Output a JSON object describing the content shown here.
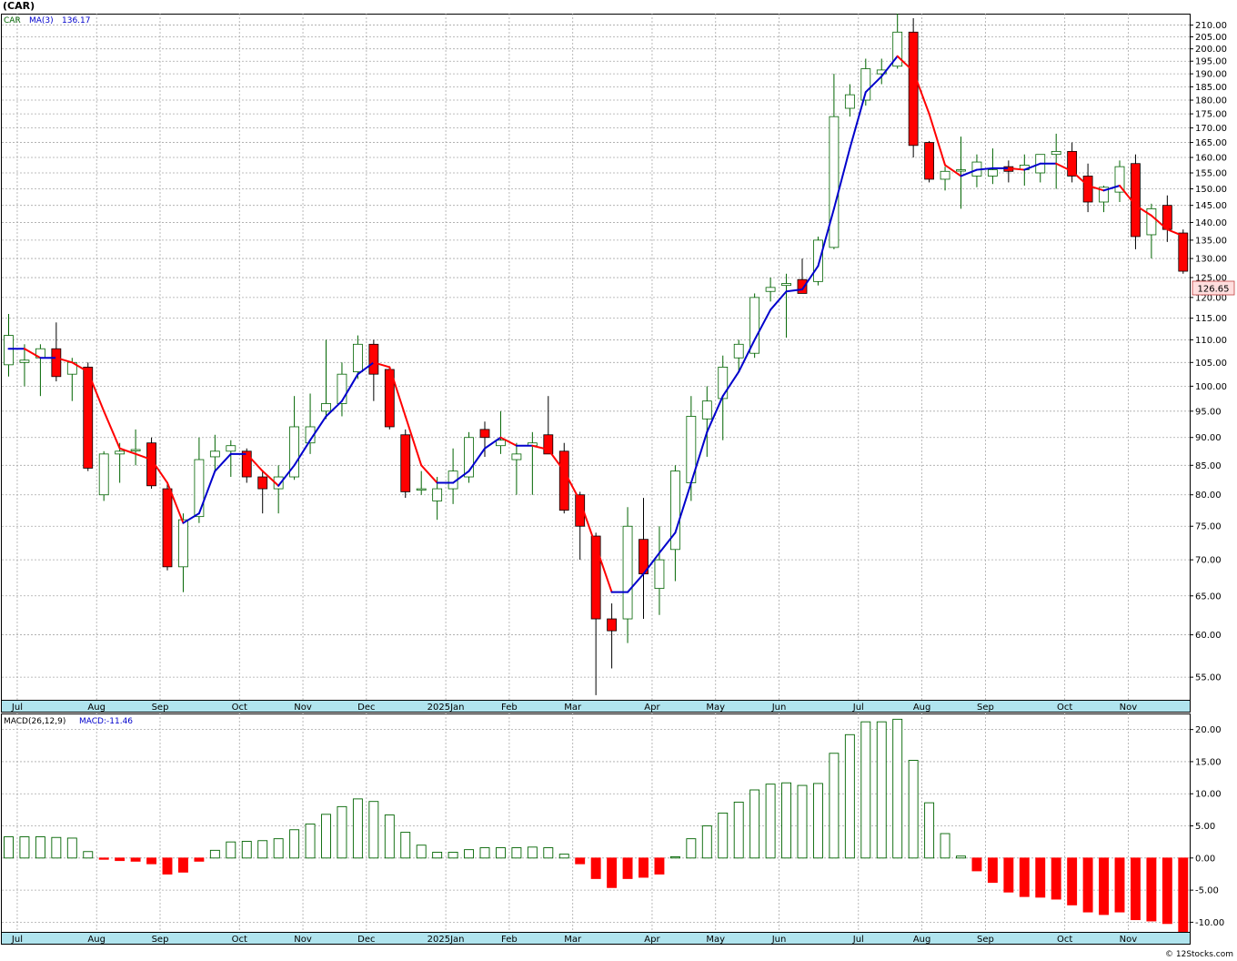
{
  "header": {
    "title": "(CAR)"
  },
  "legend": {
    "price_symbol": "CAR",
    "ma_label": "MA(3)",
    "ma_value": "136.17",
    "macd_label": "MACD(26,12,9)",
    "macd_value_label": "MACD:-11.46"
  },
  "last_price_label": "126.65",
  "footer": {
    "credit": "© 12Stocks.com"
  },
  "colors": {
    "up_candle": "#006400",
    "down_candle": "#ff0000",
    "ma_up": "#0000cc",
    "ma_down": "#ff0000",
    "axis_strip": "#b0e4ee",
    "last_price_box": "#ffdede"
  },
  "chart_data": [
    {
      "type": "candlestick",
      "x_unit": "week",
      "x_axis_labels": [
        "Jul",
        "Aug",
        "Sep",
        "Oct",
        "Nov",
        "Dec",
        "2025Jan",
        "Feb",
        "Mar",
        "Apr",
        "May",
        "Jun",
        "Jul",
        "Aug",
        "Sep",
        "Oct",
        "Nov"
      ],
      "x_label_week_index": [
        1,
        6,
        10,
        15,
        19,
        23,
        28,
        32,
        36,
        41,
        45,
        49,
        54,
        58,
        62,
        67,
        71
      ],
      "y_scale": "log",
      "y_ticks": [
        55,
        60,
        65,
        70,
        75,
        80,
        85,
        90,
        95,
        100,
        105,
        110,
        115,
        120,
        125,
        130,
        135,
        140,
        145,
        150,
        155,
        160,
        165,
        170,
        175,
        180,
        185,
        190,
        195,
        200,
        205,
        210
      ],
      "y_tick_labels": [
        "55.00",
        "60.00",
        "65.00",
        "70.00",
        "75.00",
        "80.00",
        "85.00",
        "90.00",
        "95.00",
        "100.00",
        "105.00",
        "110.00",
        "115.00",
        "120.00",
        "125.00",
        "130.00",
        "135.00",
        "140.00",
        "145.00",
        "150.00",
        "155.00",
        "160.00",
        "165.00",
        "170.00",
        "175.00",
        "180.00",
        "185.00",
        "190.00",
        "195.00",
        "200.00",
        "205.00",
        "210.00"
      ],
      "ylim": [
        52.5,
        215
      ],
      "ohlc": [
        [
          104.5,
          116,
          102,
          111
        ],
        [
          105,
          109,
          100,
          105.5
        ],
        [
          106,
          109,
          98,
          108
        ],
        [
          108,
          114,
          101,
          102
        ],
        [
          102.5,
          106,
          97,
          105
        ],
        [
          104,
          105,
          84,
          84.5
        ],
        [
          80,
          87.5,
          79,
          87
        ],
        [
          87,
          89,
          82,
          87.5
        ],
        [
          87.8,
          91.5,
          85,
          87.8
        ],
        [
          89,
          90,
          81,
          81.5
        ],
        [
          81,
          82,
          68.5,
          69
        ],
        [
          69,
          77,
          65.5,
          76
        ],
        [
          76.5,
          90,
          75.5,
          86
        ],
        [
          86.5,
          90.5,
          84,
          87.5
        ],
        [
          87.5,
          89.5,
          83,
          88.5
        ],
        [
          87.5,
          88,
          82,
          83
        ],
        [
          83,
          84,
          77,
          81
        ],
        [
          81,
          85,
          77,
          83
        ],
        [
          83,
          98,
          82.5,
          92
        ],
        [
          89,
          98.5,
          87,
          92
        ],
        [
          95,
          110,
          93.5,
          96.5
        ],
        [
          96.5,
          105,
          94,
          102.5
        ],
        [
          103,
          111,
          101.5,
          109
        ],
        [
          109,
          110,
          97,
          102.5
        ],
        [
          103.5,
          104,
          91.5,
          92
        ],
        [
          90.5,
          91.5,
          79.5,
          80.5
        ],
        [
          81,
          84,
          80,
          81
        ],
        [
          79,
          83,
          76,
          81
        ],
        [
          81,
          88,
          78.5,
          84
        ],
        [
          83,
          91,
          82,
          90
        ],
        [
          91.5,
          93,
          86.5,
          90
        ],
        [
          88.5,
          95,
          87,
          89.5
        ],
        [
          86,
          89,
          80,
          87
        ],
        [
          88.5,
          91,
          80,
          89
        ],
        [
          90.5,
          98,
          87.5,
          87
        ],
        [
          87.5,
          89,
          77,
          77.5
        ],
        [
          80,
          80.5,
          70,
          75
        ],
        [
          73.5,
          74,
          53,
          62
        ],
        [
          62,
          64,
          56,
          60.5
        ],
        [
          62,
          78,
          59,
          75
        ],
        [
          73,
          79.5,
          62,
          68
        ],
        [
          66,
          75,
          62.5,
          70
        ],
        [
          71.5,
          85,
          67,
          84
        ],
        [
          82,
          98,
          79,
          94
        ],
        [
          93.5,
          100,
          86.5,
          97
        ],
        [
          97.5,
          106.5,
          89.5,
          104
        ],
        [
          106,
          110,
          103,
          109
        ],
        [
          107,
          121,
          106,
          120
        ],
        [
          121.5,
          125,
          119,
          122.5
        ],
        [
          123,
          126,
          110.5,
          123.5
        ],
        [
          124.5,
          130,
          121,
          121
        ],
        [
          124,
          136,
          123,
          135
        ],
        [
          133,
          190,
          132.5,
          174
        ],
        [
          177,
          186,
          174,
          182
        ],
        [
          180,
          196,
          178,
          192
        ],
        [
          190,
          196,
          186,
          191.5
        ],
        [
          193,
          215,
          192,
          207
        ],
        [
          207,
          213,
          160,
          164
        ],
        [
          165,
          165.5,
          152,
          153
        ],
        [
          153,
          157,
          149.5,
          155.5
        ],
        [
          156,
          167,
          144,
          156
        ],
        [
          154,
          161,
          150.5,
          158.5
        ],
        [
          154,
          163,
          151.5,
          156
        ],
        [
          157,
          159,
          152,
          155.5
        ],
        [
          156,
          161,
          151,
          157.5
        ],
        [
          155,
          161,
          152,
          161
        ],
        [
          161,
          168,
          150,
          162
        ],
        [
          162,
          165,
          152,
          154
        ],
        [
          154,
          158,
          143,
          146
        ],
        [
          146,
          151,
          143,
          150.5
        ],
        [
          149,
          159,
          146,
          157
        ],
        [
          158,
          161,
          132.5,
          136
        ],
        [
          136.5,
          145.5,
          130,
          144
        ],
        [
          145,
          148,
          134.5,
          138
        ],
        [
          137,
          138,
          126,
          126.65
        ]
      ],
      "moving_average": {
        "name": "MA(3)",
        "values": [
          108,
          108,
          106,
          106,
          105,
          103,
          95,
          88,
          87,
          86,
          82,
          75.5,
          77,
          84,
          87,
          87,
          84,
          81.5,
          85,
          89.5,
          94,
          97,
          102.5,
          105,
          104,
          94,
          85,
          82,
          82,
          84,
          88,
          90,
          88.5,
          88.5,
          87.8,
          84,
          79,
          72,
          65.5,
          65.5,
          68,
          71,
          74,
          82,
          91,
          98,
          103,
          110,
          117,
          121.5,
          122,
          128,
          144,
          163,
          183,
          189,
          197,
          191,
          175,
          157.5,
          154,
          156,
          156.5,
          156.5,
          156,
          158,
          158,
          155.5,
          151,
          149.5,
          151,
          145,
          142,
          138,
          136.17
        ]
      }
    },
    {
      "type": "bar",
      "name": "MACD(26,12,9)",
      "x_unit": "week",
      "x_axis_labels": [
        "Jul",
        "Aug",
        "Sep",
        "Oct",
        "Nov",
        "Dec",
        "2025Jan",
        "Feb",
        "Mar",
        "Apr",
        "May",
        "Jun",
        "Jul",
        "Aug",
        "Sep",
        "Oct",
        "Nov"
      ],
      "y_ticks": [
        -10,
        -5,
        0,
        5,
        10,
        15,
        20
      ],
      "y_tick_labels": [
        "-10.00",
        "-5.00",
        "0.00",
        "5.00",
        "10.00",
        "15.00",
        "20.00"
      ],
      "ylim": [
        -11.5,
        22.5
      ],
      "values": [
        3.3,
        3.3,
        3.3,
        3.2,
        3.1,
        1.0,
        -0.2,
        -0.4,
        -0.5,
        -0.9,
        -2.5,
        -2.2,
        -0.5,
        1.2,
        2.5,
        2.6,
        2.7,
        3.0,
        4.4,
        5.3,
        6.8,
        8.0,
        9.2,
        8.8,
        6.7,
        4.0,
        2.0,
        0.9,
        0.9,
        1.3,
        1.6,
        1.6,
        1.6,
        1.7,
        1.6,
        0.6,
        -0.9,
        -3.2,
        -4.6,
        -3.2,
        -3.0,
        -2.5,
        0.2,
        3.0,
        5.0,
        7.0,
        8.7,
        10.6,
        11.5,
        11.7,
        11.3,
        11.6,
        16.3,
        19.2,
        21.2,
        21.2,
        21.6,
        15.2,
        8.6,
        3.8,
        0.3,
        -2.0,
        -3.8,
        -5.3,
        -6.0,
        -6.1,
        -6.4,
        -7.3,
        -8.4,
        -8.8,
        -8.4,
        -9.6,
        -9.8,
        -10.2,
        -11.46
      ]
    }
  ]
}
